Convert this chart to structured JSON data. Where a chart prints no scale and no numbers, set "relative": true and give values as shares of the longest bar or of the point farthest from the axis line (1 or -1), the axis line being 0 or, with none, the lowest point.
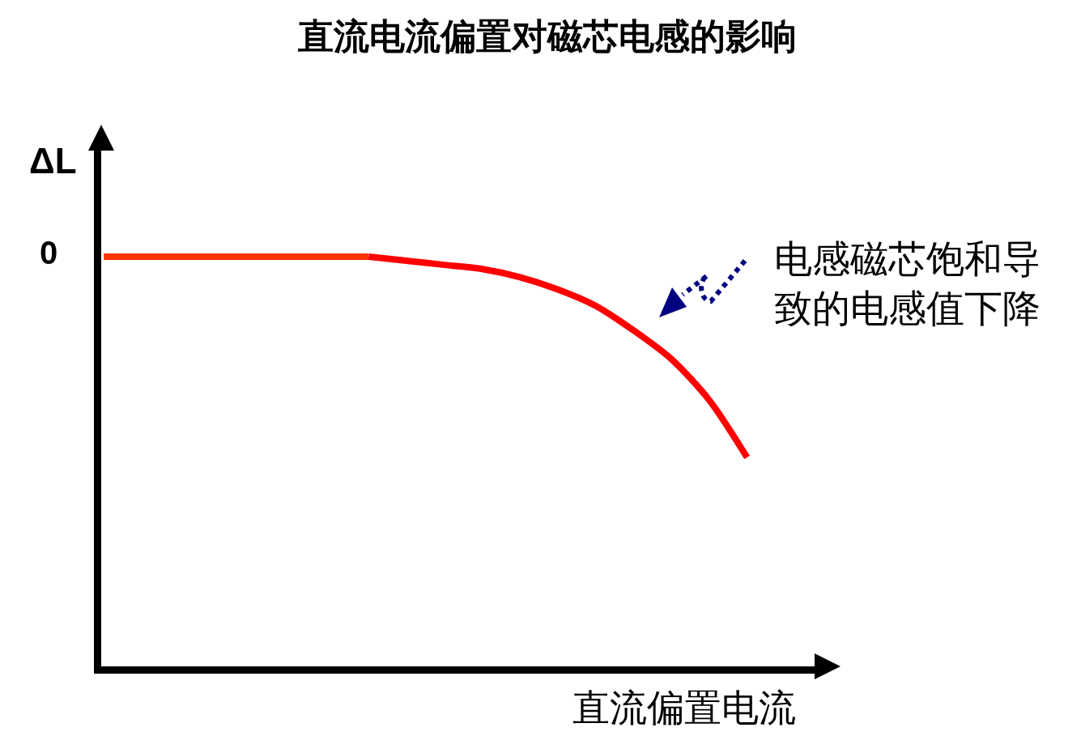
{
  "chart_data": {
    "type": "line",
    "title": "直流电流偏置对磁芯电感的影响",
    "xlabel": "直流偏置电流",
    "ylabel": "ΔL",
    "relative": true,
    "categories": [
      null,
      null,
      null,
      null,
      null,
      null,
      null,
      null,
      null,
      null,
      null,
      null,
      null,
      null,
      null,
      null,
      null,
      null
    ],
    "series": [
      {
        "color": "#ff3300",
        "values": [
          1,
          1,
          1,
          1,
          1,
          1,
          1,
          1,
          null,
          null,
          null,
          null,
          null,
          null,
          null,
          null,
          null,
          null
        ]
      },
      {
        "color": "#ff0000",
        "values": [
          null,
          null,
          null,
          null,
          null,
          null,
          null,
          1,
          0.99,
          0.98,
          0.97,
          0.95,
          0.92,
          0.88,
          0.82,
          0.75,
          0.65,
          0.51
        ]
      }
    ],
    "annotations": [
      "0",
      "电感磁芯饱和导致的电感值下降"
    ],
    "line_style": "solid",
    "marker": "none"
  }
}
